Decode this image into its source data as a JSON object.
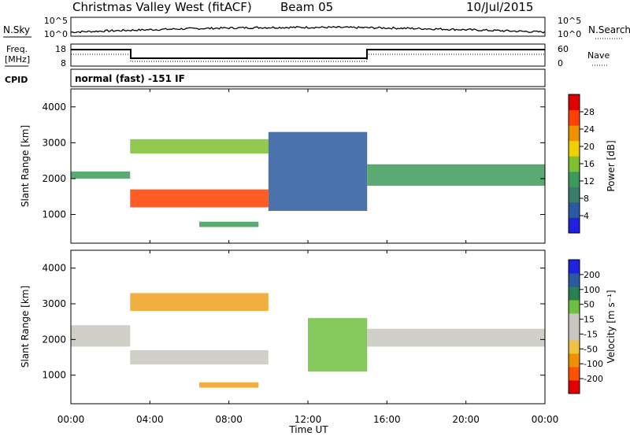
{
  "header": {
    "title": "Christmas Valley West (fitACF)",
    "beam": "Beam 05",
    "date": "10/Jul/2015"
  },
  "noise_panel": {
    "left_label": "N.Sky",
    "right_label": "N.Search",
    "left_ticks": [
      "10^5",
      "10^0"
    ],
    "right_ticks": [
      "10^5",
      "10^0"
    ]
  },
  "freq_panel": {
    "left_label": "Freq.",
    "left_unit": "[MHz]",
    "right_label": "Nave",
    "left_ticks": [
      "18",
      "8"
    ],
    "right_ticks": [
      "60",
      "0"
    ]
  },
  "cpid": {
    "label": "CPID",
    "text": "normal (fast) -151 IF"
  },
  "x_axis": {
    "label": "Time UT",
    "ticks": [
      "00:00",
      "04:00",
      "08:00",
      "12:00",
      "16:00",
      "20:00",
      "00:00"
    ]
  },
  "colors": {
    "power_scale": [
      "#2020e0",
      "#2a5aa0",
      "#3a7d6a",
      "#3e9a5a",
      "#7fc030",
      "#f0d000",
      "#f09000",
      "#ff4000",
      "#e00000"
    ],
    "velocity_scale": [
      "#e00000",
      "#ff5000",
      "#f09000",
      "#f0c040",
      "#c8c8c0",
      "#c8c8c0",
      "#70c040",
      "#2a8050",
      "#2a5aa0",
      "#2020e0"
    ]
  },
  "chart_data": [
    {
      "type": "heatmap",
      "title": "",
      "ylabel": "Slant Range [km]",
      "colorbar_label": "Power [dB]",
      "colorbar_ticks": [
        "28",
        "24",
        "20",
        "16",
        "12",
        "8",
        "4"
      ],
      "xlim": [
        0,
        24
      ],
      "ylim": [
        200,
        4500
      ],
      "yticks": [
        "4000",
        "3000",
        "2000",
        "1000"
      ],
      "bands": [
        {
          "t": [
            0.0,
            3.0
          ],
          "r": [
            2000,
            2200
          ],
          "level": "mid"
        },
        {
          "t": [
            3.0,
            10.0
          ],
          "r": [
            2700,
            3100
          ],
          "level": "mid-high"
        },
        {
          "t": [
            3.0,
            10.0
          ],
          "r": [
            1200,
            1700
          ],
          "level": "high"
        },
        {
          "t": [
            6.5,
            9.5
          ],
          "r": [
            650,
            800
          ],
          "level": "mid"
        },
        {
          "t": [
            10.0,
            15.0
          ],
          "r": [
            1100,
            3300
          ],
          "level": "low"
        },
        {
          "t": [
            15.0,
            24.0
          ],
          "r": [
            1800,
            2400
          ],
          "level": "mid"
        }
      ]
    },
    {
      "type": "heatmap",
      "title": "",
      "ylabel": "Slant Range [km]",
      "colorbar_label": "Velocity [m s⁻¹]",
      "colorbar_ticks": [
        "200",
        "100",
        "50",
        "15",
        "-15",
        "-50",
        "-100",
        "-200"
      ],
      "xlim": [
        0,
        24
      ],
      "ylim": [
        200,
        4500
      ],
      "yticks": [
        "4000",
        "3000",
        "2000",
        "1000"
      ],
      "bands": [
        {
          "t": [
            0.0,
            3.0
          ],
          "r": [
            1800,
            2400
          ],
          "level": "0"
        },
        {
          "t": [
            3.0,
            10.0
          ],
          "r": [
            2800,
            3300
          ],
          "level": "-50"
        },
        {
          "t": [
            3.0,
            10.0
          ],
          "r": [
            1300,
            1700
          ],
          "level": "0"
        },
        {
          "t": [
            6.5,
            9.5
          ],
          "r": [
            650,
            800
          ],
          "level": "-50"
        },
        {
          "t": [
            12.0,
            15.0
          ],
          "r": [
            1100,
            2600
          ],
          "level": "+50"
        },
        {
          "t": [
            15.0,
            24.0
          ],
          "r": [
            1800,
            2300
          ],
          "level": "0"
        }
      ]
    }
  ]
}
